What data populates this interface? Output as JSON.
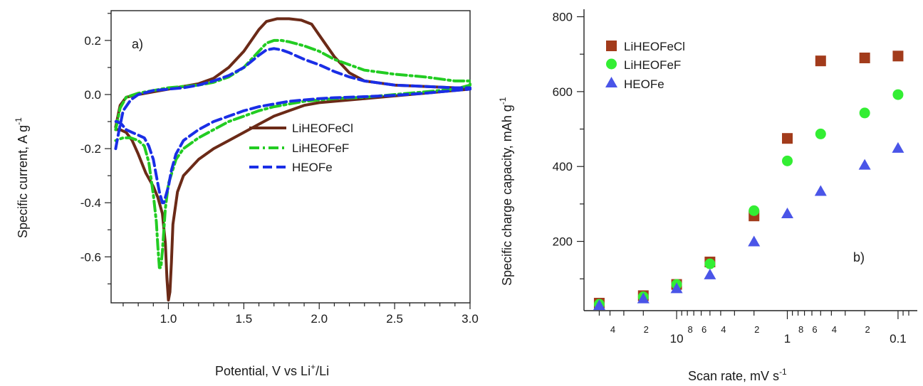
{
  "chart_data": [
    {
      "type": "line",
      "panel_label": "a)",
      "xlabel_parts": [
        "Potential, V vs Li",
        "+",
        "/Li"
      ],
      "ylabel_parts": [
        "Specific current, A g",
        "-1"
      ],
      "xlim": [
        0.62,
        3.0
      ],
      "ylim": [
        -0.77,
        0.31
      ],
      "xticks": [
        "1.0",
        "1.5",
        "2.0",
        "2.5",
        "3.0"
      ],
      "yticks": [
        "0.2",
        "0.0",
        "-0.2",
        "-0.4",
        "-0.6"
      ],
      "series": [
        {
          "name": "LiHEOFeCl",
          "color": "#6b2a17",
          "style": "solid",
          "x": [
            0.65,
            0.68,
            0.72,
            0.8,
            0.9,
            1.0,
            1.1,
            1.2,
            1.3,
            1.4,
            1.5,
            1.6,
            1.65,
            1.72,
            1.8,
            1.88,
            1.95,
            2.0,
            2.1,
            2.2,
            2.3,
            2.5,
            2.7,
            2.9,
            3.0,
            3.0,
            2.9,
            2.7,
            2.5,
            2.3,
            2.1,
            2.0,
            1.9,
            1.8,
            1.7,
            1.6,
            1.5,
            1.4,
            1.3,
            1.2,
            1.1,
            1.06,
            1.03,
            1.02,
            1.01,
            1.0,
            0.99,
            0.98,
            0.96,
            0.93,
            0.9,
            0.85,
            0.8,
            0.76,
            0.72,
            0.68,
            0.65
          ],
          "y": [
            -0.12,
            -0.04,
            -0.01,
            0.0,
            0.01,
            0.02,
            0.03,
            0.04,
            0.06,
            0.1,
            0.16,
            0.24,
            0.27,
            0.28,
            0.28,
            0.275,
            0.26,
            0.22,
            0.14,
            0.08,
            0.05,
            0.035,
            0.03,
            0.025,
            0.02,
            0.02,
            0.015,
            0.005,
            -0.005,
            -0.015,
            -0.025,
            -0.03,
            -0.04,
            -0.06,
            -0.08,
            -0.11,
            -0.14,
            -0.17,
            -0.2,
            -0.24,
            -0.3,
            -0.36,
            -0.48,
            -0.62,
            -0.73,
            -0.76,
            -0.68,
            -0.55,
            -0.44,
            -0.38,
            -0.34,
            -0.29,
            -0.22,
            -0.17,
            -0.14,
            -0.13,
            -0.13
          ]
        },
        {
          "name": "LiHEOFeF",
          "color": "#22cc22",
          "style": "dash-dot",
          "x": [
            0.65,
            0.68,
            0.72,
            0.8,
            0.9,
            1.0,
            1.1,
            1.2,
            1.3,
            1.4,
            1.5,
            1.6,
            1.65,
            1.7,
            1.75,
            1.8,
            1.9,
            2.0,
            2.1,
            2.2,
            2.3,
            2.5,
            2.7,
            2.9,
            3.0,
            3.0,
            2.9,
            2.7,
            2.5,
            2.3,
            2.1,
            2.0,
            1.9,
            1.8,
            1.7,
            1.6,
            1.5,
            1.4,
            1.3,
            1.2,
            1.1,
            1.05,
            1.0,
            0.98,
            0.97,
            0.96,
            0.95,
            0.94,
            0.93,
            0.92,
            0.9,
            0.87,
            0.84,
            0.8,
            0.75,
            0.7,
            0.65
          ],
          "y": [
            -0.13,
            -0.05,
            -0.01,
            0.005,
            0.015,
            0.025,
            0.03,
            0.035,
            0.045,
            0.065,
            0.1,
            0.16,
            0.19,
            0.2,
            0.2,
            0.195,
            0.18,
            0.16,
            0.13,
            0.11,
            0.09,
            0.075,
            0.065,
            0.05,
            0.05,
            0.035,
            0.02,
            0.01,
            0.0,
            -0.01,
            -0.015,
            -0.02,
            -0.025,
            -0.035,
            -0.045,
            -0.06,
            -0.08,
            -0.1,
            -0.13,
            -0.16,
            -0.2,
            -0.24,
            -0.33,
            -0.42,
            -0.5,
            -0.58,
            -0.64,
            -0.64,
            -0.56,
            -0.47,
            -0.37,
            -0.25,
            -0.19,
            -0.17,
            -0.16,
            -0.16,
            -0.17
          ]
        },
        {
          "name": "HEOFe",
          "color": "#1a2ee6",
          "style": "dashed",
          "x": [
            0.65,
            0.67,
            0.7,
            0.75,
            0.8,
            0.9,
            1.0,
            1.1,
            1.2,
            1.3,
            1.4,
            1.5,
            1.6,
            1.65,
            1.7,
            1.75,
            1.8,
            1.9,
            2.0,
            2.1,
            2.2,
            2.3,
            2.5,
            2.7,
            2.9,
            3.0,
            3.0,
            2.9,
            2.7,
            2.5,
            2.3,
            2.1,
            2.0,
            1.9,
            1.8,
            1.7,
            1.6,
            1.5,
            1.4,
            1.3,
            1.2,
            1.1,
            1.05,
            1.02,
            1.0,
            0.98,
            0.97,
            0.96,
            0.94,
            0.92,
            0.9,
            0.87,
            0.84,
            0.8,
            0.76,
            0.72,
            0.69,
            0.66,
            0.65
          ],
          "y": [
            -0.2,
            -0.14,
            -0.06,
            -0.02,
            0.0,
            0.015,
            0.02,
            0.025,
            0.035,
            0.05,
            0.07,
            0.1,
            0.145,
            0.165,
            0.17,
            0.165,
            0.155,
            0.13,
            0.11,
            0.085,
            0.065,
            0.05,
            0.035,
            0.03,
            0.025,
            0.025,
            0.02,
            0.015,
            0.005,
            -0.003,
            -0.008,
            -0.012,
            -0.015,
            -0.02,
            -0.025,
            -0.035,
            -0.045,
            -0.06,
            -0.08,
            -0.1,
            -0.13,
            -0.17,
            -0.22,
            -0.28,
            -0.34,
            -0.38,
            -0.4,
            -0.4,
            -0.36,
            -0.3,
            -0.24,
            -0.19,
            -0.16,
            -0.15,
            -0.14,
            -0.13,
            -0.11,
            -0.1,
            -0.1
          ]
        }
      ]
    },
    {
      "type": "scatter",
      "panel_label": "b)",
      "xlabel_parts": [
        "Scan rate, mV s",
        "-1"
      ],
      "ylabel_parts": [
        "Specific charge capacity, mAh g",
        "-1"
      ],
      "xscale": "log-reversed",
      "xlim": [
        55,
        0.08
      ],
      "ylim": [
        15,
        820
      ],
      "xticks": [
        "10",
        "1",
        "0.1"
      ],
      "minor_tick_labels": [
        "4",
        "2",
        "8",
        "6",
        "4",
        "2",
        "8",
        "6",
        "4",
        "2"
      ],
      "yticks": [
        "800",
        "600",
        "400",
        "200"
      ],
      "series": [
        {
          "name": "LiHEOFeCl",
          "marker": "square",
          "color": "#a23b1b",
          "x": [
            50,
            20,
            10,
            5,
            2,
            1,
            0.5,
            0.2,
            0.1
          ],
          "y": [
            35,
            55,
            85,
            145,
            268,
            475,
            682,
            690,
            695
          ]
        },
        {
          "name": "LiHEOFeF",
          "marker": "circle",
          "color": "#33ee33",
          "x": [
            50,
            20,
            10,
            5,
            2,
            1,
            0.5,
            0.2,
            0.1
          ],
          "y": [
            32,
            52,
            85,
            140,
            282,
            415,
            487,
            543,
            592
          ]
        },
        {
          "name": "HEOFe",
          "marker": "triangle",
          "color": "#4a55e8",
          "x": [
            50,
            20,
            10,
            5,
            2,
            1,
            0.5,
            0.2,
            0.1
          ],
          "y": [
            30,
            48,
            75,
            112,
            200,
            275,
            335,
            405,
            450
          ]
        }
      ]
    }
  ]
}
